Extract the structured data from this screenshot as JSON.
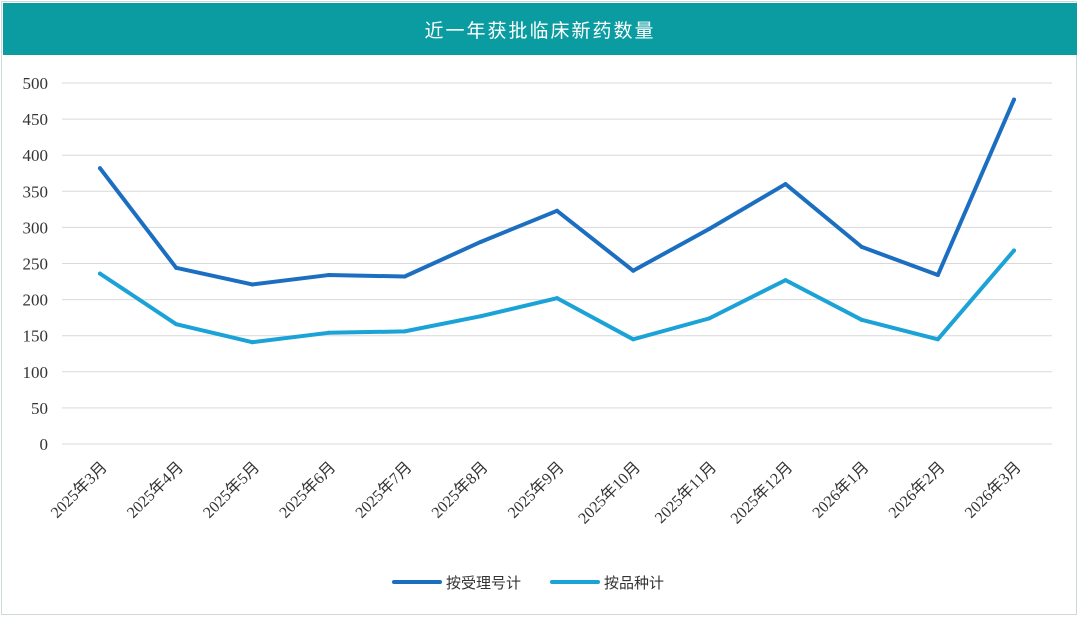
{
  "colors": {
    "title_bg": "#0a9ca0",
    "series_1": "#1c6fc0",
    "series_2": "#1ba2d6",
    "grid": "#d9d9d9"
  },
  "chart_data": {
    "type": "line",
    "title": "近一年获批临床新药数量",
    "xlabel": "",
    "ylabel": "",
    "ylim": [
      0,
      500
    ],
    "yticks": [
      "0",
      "50",
      "100",
      "150",
      "200",
      "250",
      "300",
      "350",
      "400",
      "450",
      "500"
    ],
    "grid": true,
    "legend_position": "bottom",
    "categories": [
      "2025年3月",
      "2025年4月",
      "2025年5月",
      "2025年6月",
      "2025年7月",
      "2025年8月",
      "2025年9月",
      "2025年10月",
      "2025年11月",
      "2025年12月",
      "2026年1月",
      "2026年2月",
      "2026年3月"
    ],
    "series": [
      {
        "name": "按受理号计",
        "values": [
          382,
          244,
          221,
          234,
          232,
          280,
          323,
          240,
          298,
          360,
          273,
          234,
          477
        ]
      },
      {
        "name": "按品种计",
        "values": [
          236,
          166,
          141,
          154,
          156,
          177,
          202,
          145,
          174,
          227,
          172,
          145,
          268
        ]
      }
    ]
  }
}
